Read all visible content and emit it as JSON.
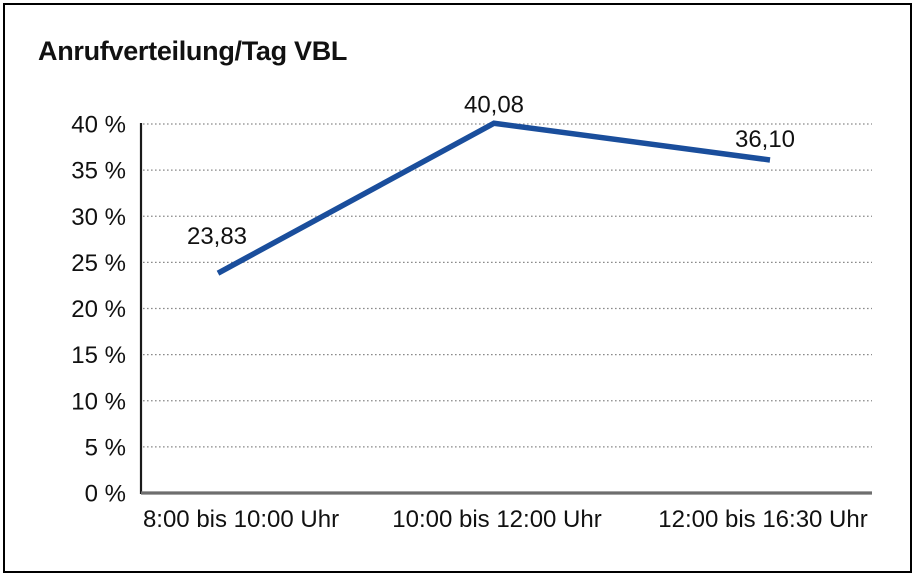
{
  "chart_data": {
    "type": "line",
    "title": "Anrufverteilung/Tag VBL",
    "categories": [
      "8:00 bis 10:00 Uhr",
      "10:00 bis 12:00 Uhr",
      "12:00 bis 16:30 Uhr"
    ],
    "values": [
      23.83,
      40.08,
      36.1
    ],
    "point_labels": [
      "23,83",
      "40,08",
      "36,10"
    ],
    "xlabel": "",
    "ylabel": "",
    "ylim": [
      0,
      40
    ],
    "y_ticks": [
      0,
      5,
      10,
      15,
      20,
      25,
      30,
      35,
      40
    ],
    "y_tick_labels": [
      "0 %",
      "5 %",
      "10 %",
      "15 %",
      "20 %",
      "25 %",
      "30 %",
      "35 %",
      "40 %"
    ],
    "grid": "horizontal dotted",
    "legend": "none",
    "colors": {
      "line": "#1a4e9c",
      "grid": "#8a8a8a",
      "axis_y": "#1a1a1a",
      "axis_x": "#6e6e6e",
      "text": "#111111",
      "background": "#ffffff",
      "border": "#000000"
    }
  }
}
